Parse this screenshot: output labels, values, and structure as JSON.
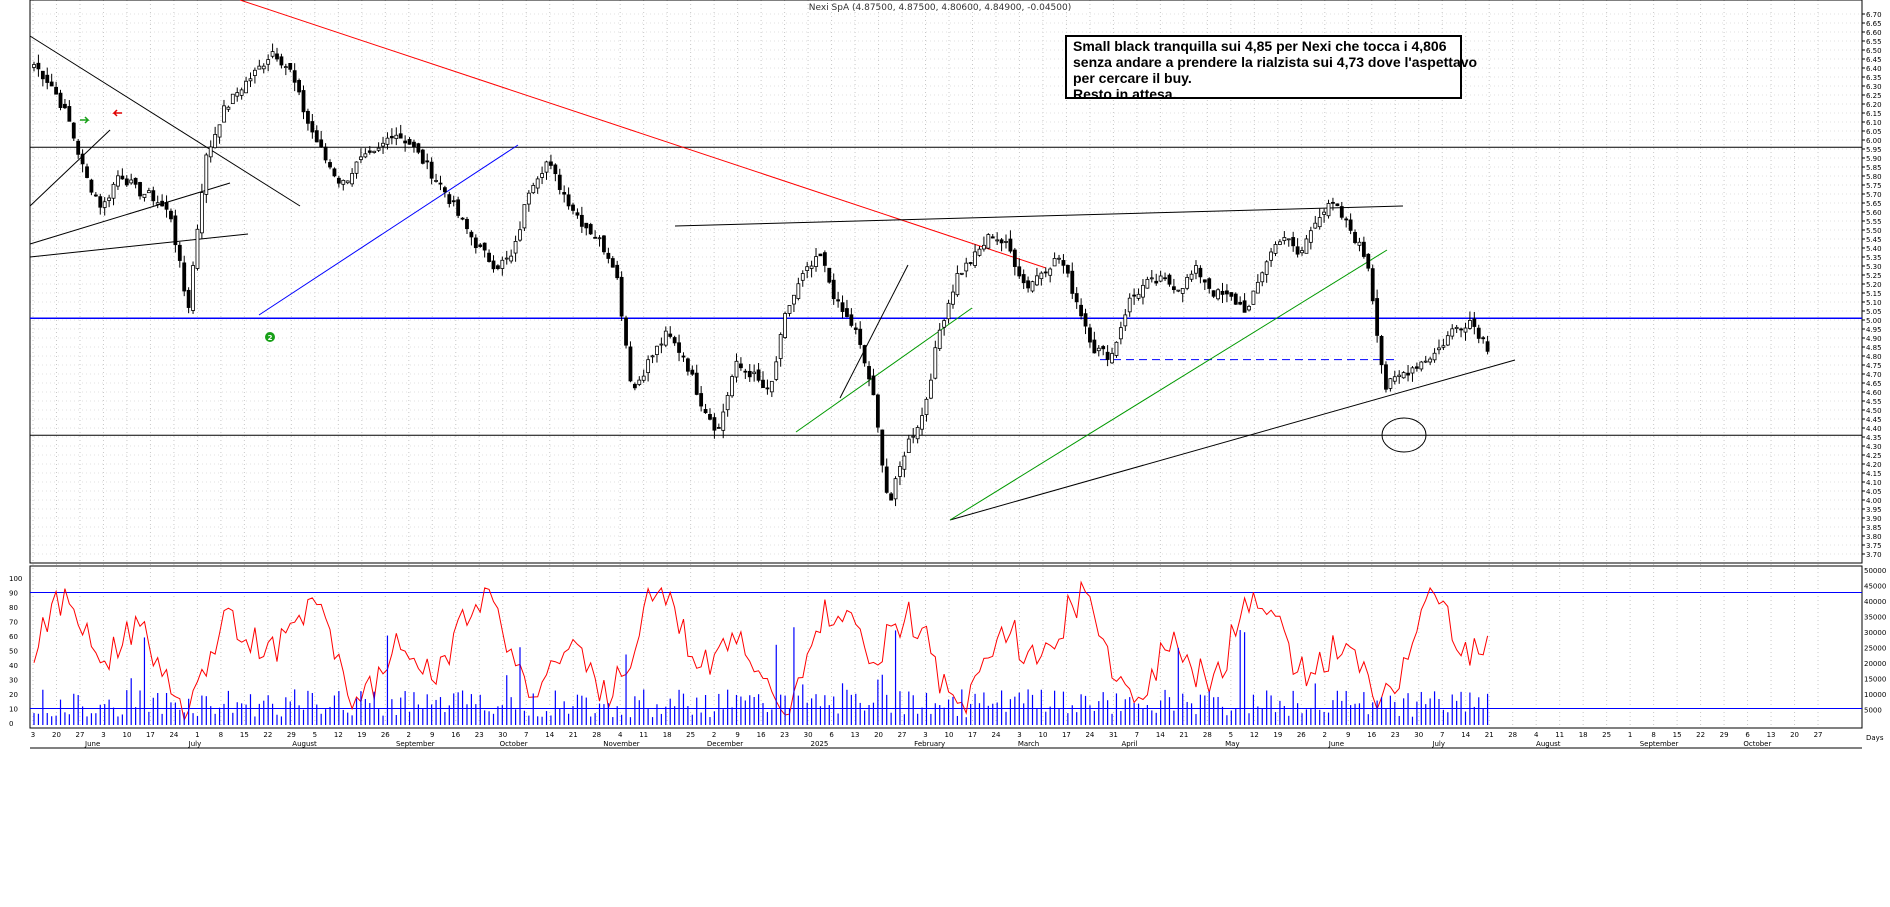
{
  "header": {
    "ticker_line": "Nexi SpA (4.87500, 4.87500, 4.80600, 4.84900, -0.04500)"
  },
  "note": {
    "lines": [
      "Small black tranquilla sui 4,85 per Nexi che tocca i 4,806",
      "senza andare a prendere la rialzista sui 4,73 dove l'aspettavo",
      "per cercare il buy.",
      "Resto in attesa."
    ]
  },
  "chart_data": {
    "type": "candlestick",
    "price_axis": {
      "min": 3.7,
      "max": 6.7,
      "step": 0.05,
      "tick_labels": [
        "6.70",
        "6.65",
        "6.60",
        "6.55",
        "6.50",
        "6.45",
        "6.40",
        "6.35",
        "6.30",
        "6.25",
        "6.20",
        "6.15",
        "6.10",
        "6.05",
        "6.00",
        "5.95",
        "5.90",
        "5.85",
        "5.80",
        "5.75",
        "5.70",
        "5.65",
        "5.60",
        "5.55",
        "5.50",
        "5.45",
        "5.40",
        "5.35",
        "5.30",
        "5.25",
        "5.20",
        "5.15",
        "5.10",
        "5.05",
        "5.00",
        "4.95",
        "4.90",
        "4.85",
        "4.80",
        "4.75",
        "4.70",
        "4.65",
        "4.60",
        "4.55",
        "4.50",
        "4.45",
        "4.40",
        "4.35",
        "4.30",
        "4.25",
        "4.20",
        "4.15",
        "4.10",
        "4.05",
        "4.00",
        "3.95",
        "3.90",
        "3.85",
        "3.80",
        "3.75",
        "3.70"
      ]
    },
    "oscillator_axis": {
      "min": 0,
      "max": 100,
      "tick_labels": [
        "100",
        "90",
        "80",
        "70",
        "60",
        "50",
        "40",
        "30",
        "20",
        "10",
        "0"
      ]
    },
    "volume_axis": {
      "min": 0,
      "max": 50000,
      "tick_labels": [
        "50000",
        "45000",
        "40000",
        "35000",
        "30000",
        "25000",
        "20000",
        "15000",
        "10000",
        "5000"
      ]
    },
    "x_axis": {
      "day_labels": [
        "3",
        "20",
        "27",
        "3",
        "10",
        "17",
        "24",
        "1",
        "8",
        "15",
        "22",
        "29",
        "5",
        "12",
        "19",
        "26",
        "2",
        "9",
        "16",
        "23",
        "30",
        "7",
        "14",
        "21",
        "28",
        "4",
        "11",
        "18",
        "25",
        "2",
        "9",
        "16",
        "23",
        "30",
        "6",
        "13",
        "20",
        "27",
        "3",
        "10",
        "17",
        "24",
        "3",
        "10",
        "17",
        "24",
        "31",
        "7",
        "14",
        "21",
        "28",
        "5",
        "12",
        "19",
        "26",
        "2",
        "9",
        "16",
        "23",
        "30",
        "7",
        "14",
        "21",
        "28",
        "4",
        "11",
        "18",
        "25",
        "1",
        "8",
        "15",
        "22",
        "29",
        "6",
        "13",
        "20",
        "27"
      ],
      "month_labels": [
        "June",
        "July",
        "August",
        "September",
        "October",
        "November",
        "December",
        "2025",
        "February",
        "March",
        "April",
        "May",
        "June",
        "July",
        "August",
        "September",
        "October"
      ],
      "corner_label": "Days"
    },
    "horizontal_levels": [
      {
        "price": 5.96,
        "color": "#000000"
      },
      {
        "price": 5.01,
        "color": "#0000ff"
      },
      {
        "price": 4.36,
        "color": "#000000"
      },
      {
        "price": 4.78,
        "color": "#0000ff",
        "style": "dashed"
      }
    ],
    "oscillator_levels": [
      90,
      10
    ],
    "anchor_prices": [
      6.42,
      6.31,
      6.12,
      5.8,
      5.62,
      5.82,
      5.72,
      5.68,
      5.58,
      5.05,
      5.88,
      6.15,
      6.28,
      6.38,
      6.5,
      6.38,
      6.1,
      5.9,
      5.75,
      5.88,
      5.92,
      6.05,
      5.98,
      5.85,
      5.72,
      5.55,
      5.4,
      5.3,
      5.35,
      5.75,
      5.88,
      5.7,
      5.55,
      5.45,
      5.3,
      4.6,
      4.78,
      4.92,
      4.8,
      4.55,
      4.38,
      4.75,
      4.7,
      4.58,
      5.05,
      5.25,
      5.35,
      5.08,
      4.95,
      4.62,
      3.96,
      4.3,
      4.48,
      4.96,
      5.25,
      5.35,
      5.48,
      5.4,
      5.18,
      5.28,
      5.35,
      5.1,
      4.84,
      4.8,
      5.1,
      5.2,
      5.22,
      5.18,
      5.28,
      5.15,
      5.12,
      5.05,
      5.32,
      5.48,
      5.35,
      5.58,
      5.64,
      5.5,
      5.32,
      4.62,
      4.7,
      4.76,
      4.82,
      4.95,
      5.0,
      4.85
    ]
  }
}
